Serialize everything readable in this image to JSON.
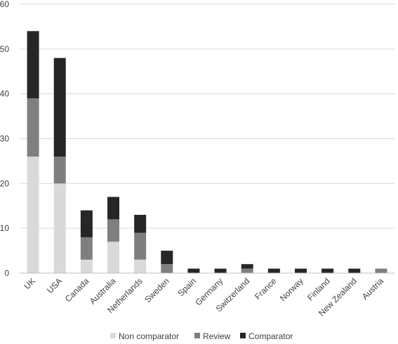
{
  "chart_data": {
    "type": "bar",
    "stacked": true,
    "categories": [
      "UK",
      "USA",
      "Canada",
      "Australia",
      "Netherlands",
      "Sweden",
      "Spain",
      "Germany",
      "Switzerland",
      "France",
      "Norway",
      "Finland",
      "New Zealand",
      "Austria"
    ],
    "series": [
      {
        "name": "Non comparator",
        "color": "#d9d9d9",
        "values": [
          26,
          20,
          3,
          7,
          3,
          0,
          0,
          0,
          0,
          0,
          0,
          0,
          0,
          0
        ]
      },
      {
        "name": "Review",
        "color": "#7f7f7f",
        "values": [
          13,
          6,
          5,
          5,
          6,
          2,
          0,
          0,
          1,
          0,
          0,
          0,
          0,
          1
        ]
      },
      {
        "name": "Comparator",
        "color": "#262626",
        "values": [
          15,
          22,
          6,
          5,
          4,
          3,
          1,
          1,
          1,
          1,
          1,
          1,
          1,
          0
        ]
      }
    ],
    "y_ticks": [
      "0",
      "10",
      "20",
      "30",
      "40",
      "50",
      "60"
    ],
    "ylim": [
      0,
      60
    ],
    "grid": true,
    "legend_position": "bottom",
    "title": "",
    "xlabel": "",
    "ylabel": ""
  }
}
